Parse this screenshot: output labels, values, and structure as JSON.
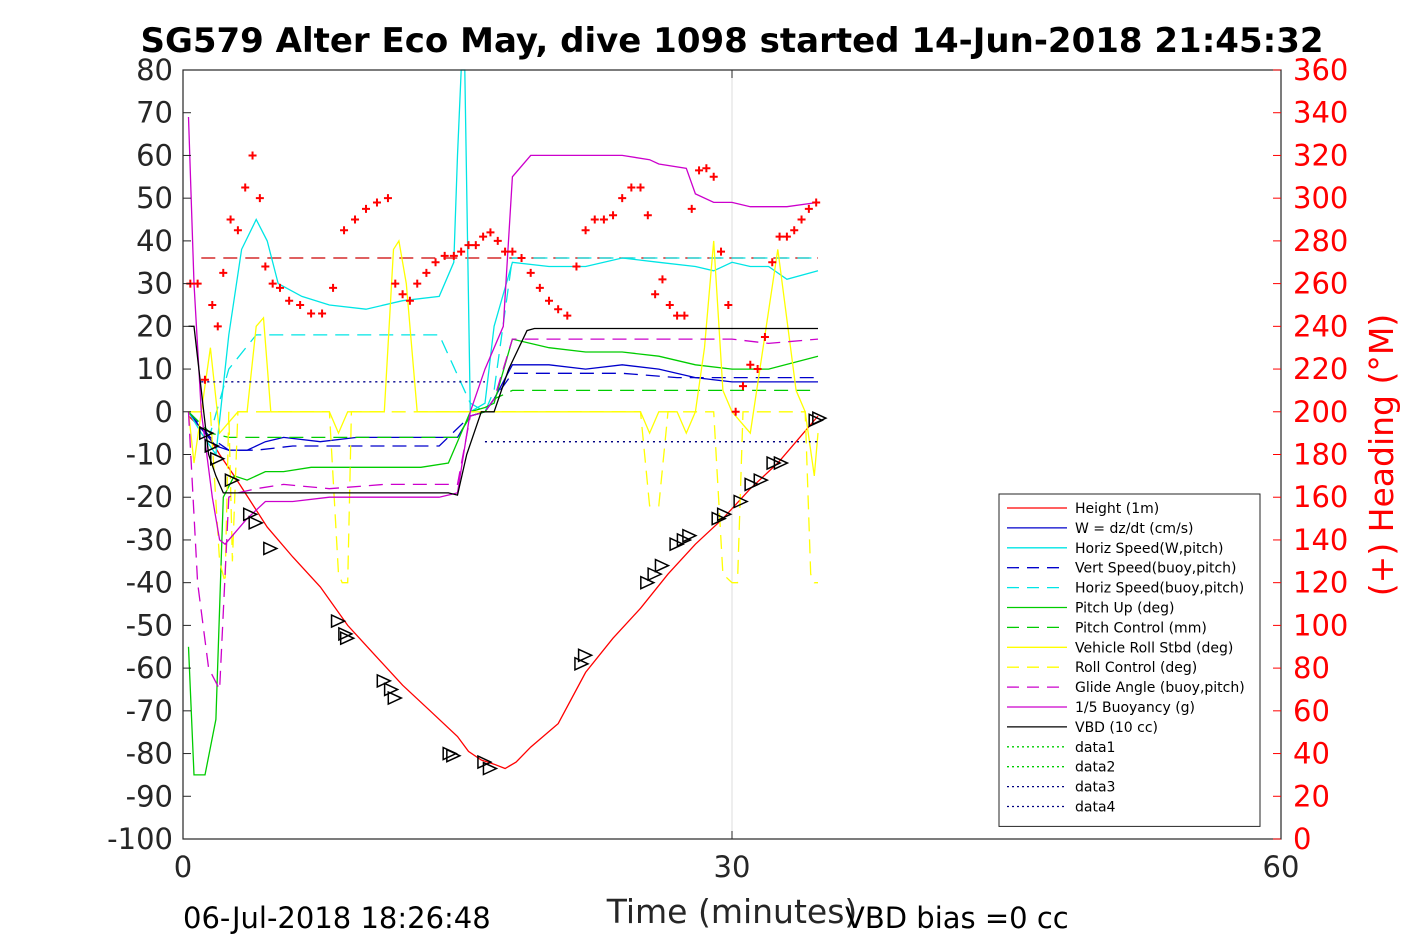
{
  "chart_data": {
    "type": "line",
    "title": "SG579 Alter Eco May, dive 1098 started 14-Jun-2018 21:45:32",
    "xlabel": "Time (minutes)",
    "ylabel_right": "(+) Heading (°M)",
    "xlim": [
      0,
      60
    ],
    "ylim": [
      -100,
      80
    ],
    "ylim_right": [
      0,
      360
    ],
    "xticks": [
      "0",
      "30",
      "60"
    ],
    "yticks": [
      "80",
      "70",
      "60",
      "50",
      "40",
      "30",
      "20",
      "10",
      "0",
      "-10",
      "-20",
      "-30",
      "-40",
      "-50",
      "-60",
      "-70",
      "-80",
      "-90",
      "-100"
    ],
    "yticks_right": [
      "360",
      "340",
      "320",
      "300",
      "280",
      "260",
      "240",
      "220",
      "200",
      "180",
      "160",
      "140",
      "120",
      "100",
      "80",
      "60",
      "40",
      "20",
      "0"
    ],
    "grid": "x at 30",
    "legend_position": "right-middle",
    "footer_left": "06-Jul-2018 18:26:48",
    "footer_right": "VBD bias =0 cc",
    "series": [
      {
        "name": "Height (1m)",
        "color": "#ff0000",
        "style": "solid",
        "x": [
          0.3,
          1.3,
          2.0,
          2.8,
          3.7,
          4.6,
          6.0,
          7.5,
          9.0,
          10.5,
          12.0,
          13.5,
          15.0,
          15.6,
          16.3,
          17.0,
          17.6,
          18.2,
          19.0,
          20.5,
          22.0,
          23.5,
          25.0,
          26.5,
          28.0,
          29.5,
          31.0,
          32.5,
          33.5,
          34.7
        ],
        "y": [
          -1,
          -5,
          -10,
          -15,
          -21,
          -27,
          -34,
          -41,
          -50,
          -57,
          -64,
          -70,
          -76,
          -79.5,
          -81.5,
          -82.5,
          -83.5,
          -82,
          -78.5,
          -73,
          -61,
          -53,
          -46,
          -38,
          -31,
          -25,
          -18,
          -12,
          -7,
          -1
        ]
      },
      {
        "name": "W = dz/dt (cm/s)",
        "color": "#0000cc",
        "style": "solid",
        "x": [
          0.3,
          1.0,
          1.8,
          2.5,
          3.5,
          4.5,
          5.5,
          7.5,
          9.5,
          11.5,
          13.5,
          15.0,
          15.7,
          16.5,
          17.0,
          18.0,
          20.0,
          22.0,
          24.0,
          26.0,
          28.0,
          30.0,
          32.0,
          34.7
        ],
        "y": [
          0,
          -4,
          -8,
          -9,
          -9,
          -7,
          -6,
          -7,
          -6,
          -6,
          -6,
          -6,
          -1,
          0,
          3,
          11,
          11,
          10,
          11,
          10,
          8,
          7,
          7,
          7
        ]
      },
      {
        "name": "Horiz Speed(W,pitch)",
        "color": "#00e5e5",
        "style": "solid",
        "x": [
          0.3,
          1.0,
          1.8,
          2.5,
          3.2,
          4.0,
          4.6,
          5.2,
          6.5,
          8.0,
          10.0,
          12.0,
          14.0,
          14.8,
          15.0,
          15.2,
          15.4,
          15.7,
          16.5,
          17.0,
          18.0,
          20.0,
          22.0,
          24.0,
          26.0,
          28.0,
          29.0,
          30.0,
          31.0,
          32.0,
          33.0,
          34.7
        ],
        "y": [
          0,
          -5,
          -10,
          18,
          38,
          45,
          40,
          30,
          27,
          25,
          24,
          26,
          27,
          35,
          60,
          80,
          80,
          0,
          2,
          20,
          35,
          34,
          34,
          36,
          35,
          34,
          33,
          35,
          34,
          34,
          31,
          33
        ]
      },
      {
        "name": "Vert Speed(buoy,pitch)",
        "color": "#0000cc",
        "style": "dashed",
        "x": [
          0.3,
          1.5,
          2.5,
          4.0,
          6.0,
          8.0,
          11.0,
          14.0,
          15.7,
          16.5,
          17.0,
          18.0,
          21.0,
          24.0,
          27.0,
          30.0,
          32.0,
          34.7
        ],
        "y": [
          0,
          -6,
          -9,
          -9,
          -8,
          -8,
          -8,
          -8,
          -1,
          0,
          3,
          9,
          9,
          9,
          8,
          8,
          8,
          8
        ]
      },
      {
        "name": "Horiz Speed(buoy,pitch)",
        "color": "#00e5e5",
        "style": "dashed",
        "x": [
          0.3,
          1.5,
          2.5,
          4.0,
          6.0,
          8.0,
          11.0,
          14.0,
          15.7,
          16.5,
          17.0,
          18.0,
          21.0,
          24.0,
          27.0,
          30.0,
          32.0,
          34.7
        ],
        "y": [
          0,
          -5,
          10,
          18,
          18,
          18,
          18,
          18,
          2,
          0,
          5,
          36,
          36,
          36,
          36,
          36,
          36,
          36
        ]
      },
      {
        "name": "Pitch Up (deg)",
        "color": "#00cc00",
        "style": "solid",
        "x": [
          0.3,
          0.6,
          1.2,
          1.8,
          2.2,
          2.8,
          3.5,
          4.5,
          5.5,
          7.0,
          9.0,
          11.0,
          13.0,
          14.5,
          15.7,
          16.5,
          17.0,
          18.0,
          20.0,
          22.0,
          24.0,
          26.0,
          28.0,
          30.0,
          32.0,
          34.7
        ],
        "y": [
          -55,
          -85,
          -85,
          -72,
          -20,
          -15,
          -16,
          -14,
          -14,
          -13,
          -13,
          -13,
          -13,
          -12,
          0,
          1,
          2,
          17,
          15,
          14,
          14,
          13,
          11,
          10,
          10,
          13
        ]
      },
      {
        "name": "Pitch Control (mm)",
        "color": "#00cc00",
        "style": "dashed",
        "x": [
          0.3,
          1.5,
          2.5,
          5.0,
          10.0,
          15.0,
          15.7,
          16.5,
          17.0,
          18.0,
          22.0,
          26.0,
          30.0,
          34.7
        ],
        "y": [
          0,
          -5,
          -6,
          -6,
          -6,
          -6,
          -1,
          0,
          3,
          5,
          5,
          5,
          5,
          5
        ]
      },
      {
        "name": "Vehicle Roll Stbd (deg)",
        "color": "#ffff00",
        "style": "solid",
        "x": [
          0.3,
          0.6,
          1.0,
          1.5,
          2.0,
          3.0,
          3.5,
          4.0,
          4.4,
          4.8,
          5.5,
          8.0,
          8.5,
          9.0,
          11.0,
          11.5,
          11.8,
          12.2,
          12.8,
          14.0,
          15.0,
          16.0,
          18.0,
          22.0,
          25.0,
          25.5,
          26.0,
          27.0,
          27.5,
          28.0,
          28.5,
          29.0,
          29.5,
          30.0,
          31.0,
          32.5,
          33.5,
          34.0,
          34.5,
          34.7
        ],
        "y": [
          0,
          -12,
          0,
          15,
          -5,
          0,
          0,
          20,
          22,
          0,
          0,
          0,
          -5,
          0,
          0,
          38,
          40,
          30,
          0,
          0,
          0,
          0,
          0,
          0,
          0,
          -5,
          0,
          0,
          -5,
          0,
          15,
          40,
          5,
          0,
          -5,
          38,
          5,
          0,
          -15,
          -5
        ]
      },
      {
        "name": "Roll Control (deg)",
        "color": "#ffff00",
        "style": "dashed",
        "x": [
          0.3,
          1.5,
          2.0,
          2.3,
          2.5,
          2.7,
          3.0,
          8.0,
          8.5,
          8.7,
          9.0,
          9.2,
          15.0,
          25.0,
          25.5,
          26.0,
          26.5,
          27.0,
          29.0,
          29.5,
          30.0,
          30.3,
          30.6,
          31.0,
          34.0,
          34.3,
          34.5,
          34.7
        ],
        "y": [
          0,
          0,
          -35,
          -40,
          0,
          -35,
          0,
          0,
          -38,
          -40,
          -40,
          0,
          0,
          0,
          -22,
          -22,
          0,
          0,
          0,
          -38,
          -40,
          -40,
          0,
          0,
          0,
          -38,
          -40,
          -40
        ]
      },
      {
        "name": "Glide Angle (buoy,pitch)",
        "color": "#cc00cc",
        "style": "dashed",
        "x": [
          0.3,
          0.8,
          1.4,
          2.0,
          2.5,
          3.0,
          4.0,
          5.5,
          8.0,
          11.0,
          14.0,
          15.0,
          15.7,
          16.5,
          17.0,
          18.0,
          21.0,
          24.0,
          27.0,
          30.0,
          32.0,
          34.7
        ],
        "y": [
          0,
          -40,
          -60,
          -65,
          -20,
          -19,
          -18,
          -17,
          -18,
          -17,
          -17,
          -17,
          -1,
          0,
          3,
          17,
          17,
          17,
          17,
          17,
          16,
          17
        ]
      },
      {
        "name": "1/5 Buoyancy (g)",
        "color": "#cc00cc",
        "style": "solid",
        "x": [
          0.3,
          0.6,
          1.0,
          1.6,
          2.0,
          2.3,
          3.5,
          4.5,
          6.0,
          8.0,
          10.0,
          12.0,
          14.0,
          15.0,
          15.7,
          16.5,
          17.5,
          18.0,
          19.0,
          21.0,
          24.0,
          25.5,
          26.0,
          27.5,
          28.0,
          29.0,
          30.0,
          31.0,
          33.0,
          34.7
        ],
        "y": [
          69,
          30,
          0,
          -20,
          -30,
          -31,
          -25,
          -21,
          -21,
          -20,
          -20,
          -20,
          -20,
          -19,
          0,
          10,
          20,
          55,
          60,
          60,
          60,
          59,
          58,
          57,
          51,
          49,
          49,
          48,
          48,
          49
        ]
      },
      {
        "name": "VBD (10 cc)",
        "color": "#000000",
        "style": "solid",
        "x": [
          0.3,
          0.6,
          1.4,
          1.8,
          2.2,
          5.0,
          10.0,
          14.5,
          15.0,
          15.5,
          16.3,
          17.0,
          17.8,
          18.8,
          19.2,
          22.0,
          26.0,
          30.0,
          34.7
        ],
        "y": [
          20,
          20,
          -10,
          -15,
          -19,
          -19,
          -19,
          -19,
          -19.5,
          -10,
          0,
          0,
          10,
          19,
          19.5,
          19.5,
          19.5,
          19.5,
          19.5
        ]
      },
      {
        "name": "data1",
        "color": "#00cc00",
        "style": "dotted",
        "x": [],
        "y": []
      },
      {
        "name": "data2",
        "color": "#00cc00",
        "style": "dotted",
        "x": [],
        "y": []
      },
      {
        "name": "data3",
        "color": "#000080",
        "style": "dotted",
        "x": [
          1.0,
          16.5
        ],
        "y": [
          7,
          7
        ]
      },
      {
        "name": "data4",
        "color": "#000080",
        "style": "dotted",
        "x": [
          16.5,
          34.7
        ],
        "y": [
          -7,
          -7
        ]
      }
    ],
    "reference_lines": [
      {
        "color": "#cc0000",
        "style": "dashed",
        "x": [
          1.0,
          34.7
        ],
        "y": [
          36,
          36
        ]
      },
      {
        "color": "#0000cc",
        "style": "dotted",
        "x": [
          1.0,
          16.5
        ],
        "y": [
          7,
          7
        ]
      },
      {
        "color": "#0000cc",
        "style": "dotted",
        "x": [
          16.5,
          34.7
        ],
        "y": [
          -7,
          -7
        ]
      }
    ],
    "heading_points_deg": {
      "color": "#ff0000",
      "marker": "+",
      "x": [
        0.4,
        0.8,
        1.2,
        1.6,
        1.9,
        2.2,
        2.6,
        3.0,
        3.4,
        3.8,
        4.2,
        4.5,
        4.9,
        5.3,
        5.8,
        6.4,
        7.0,
        7.6,
        8.2,
        8.8,
        9.4,
        10.0,
        10.6,
        11.2,
        11.6,
        12.0,
        12.4,
        12.8,
        13.3,
        13.8,
        14.3,
        14.8,
        15.2,
        15.6,
        16.0,
        16.4,
        16.8,
        17.2,
        17.6,
        18.0,
        18.5,
        19.0,
        19.5,
        20.0,
        20.5,
        21.0,
        21.5,
        22.0,
        22.5,
        23.0,
        23.5,
        24.0,
        24.5,
        25.0,
        25.4,
        25.8,
        26.2,
        26.6,
        27.0,
        27.4,
        27.8,
        28.2,
        28.6,
        29.0,
        29.4,
        29.8,
        30.2,
        30.6,
        31.0,
        31.4,
        31.8,
        32.2,
        32.6,
        33.0,
        33.4,
        33.8,
        34.2,
        34.6
      ],
      "y": [
        260,
        260,
        215,
        250,
        240,
        265,
        290,
        285,
        305,
        320,
        300,
        268,
        260,
        258,
        252,
        250,
        246,
        246,
        258,
        285,
        290,
        295,
        298,
        300,
        260,
        255,
        252,
        260,
        265,
        270,
        273,
        273,
        275,
        278,
        278,
        282,
        284,
        280,
        275,
        275,
        272,
        265,
        258,
        252,
        248,
        245,
        268,
        285,
        290,
        290,
        292,
        300,
        305,
        305,
        292,
        255,
        262,
        250,
        245,
        245,
        295,
        313,
        314,
        310,
        275,
        250,
        200,
        212,
        222,
        220,
        235,
        270,
        282,
        282,
        285,
        290,
        295,
        298
      ]
    },
    "triangle_markers": {
      "color": "#000000",
      "x": [
        1.3,
        1.6,
        1.9,
        2.7,
        3.7,
        4.0,
        4.8,
        8.5,
        8.9,
        9.0,
        11.0,
        11.4,
        11.6,
        14.6,
        14.8,
        16.5,
        16.8,
        21.8,
        22.0,
        25.4,
        25.8,
        26.2,
        27.0,
        27.4,
        27.7,
        29.3,
        29.6,
        30.5,
        31.1,
        31.6,
        32.3,
        32.7,
        34.6,
        34.8
      ],
      "y": [
        -5,
        -8,
        -11,
        -16,
        -24,
        -26,
        -32,
        -49,
        -52,
        -53,
        -63,
        -65,
        -67,
        -80,
        -80.5,
        -82,
        -83.5,
        -59,
        -57,
        -40,
        -38,
        -36,
        -31,
        -30,
        -29,
        -25,
        -24,
        -21,
        -17,
        -16,
        -12,
        -12,
        -2,
        -1.5
      ]
    }
  }
}
